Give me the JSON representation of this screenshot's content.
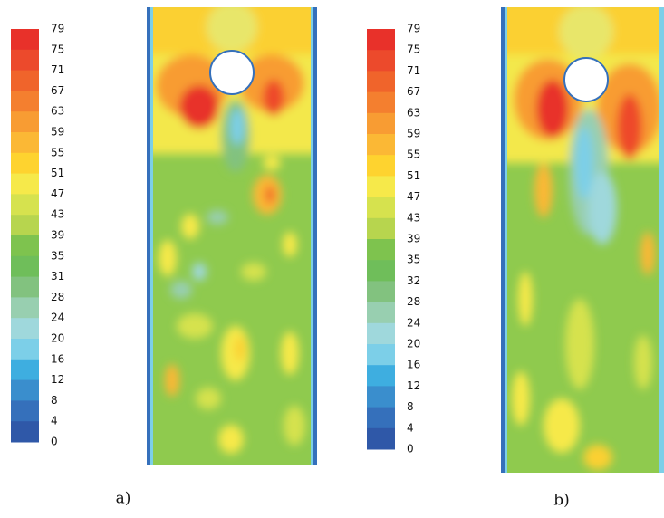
{
  "panels": [
    {
      "colorbar": {
        "labels": [
          79,
          75,
          71,
          67,
          63,
          59,
          55,
          51,
          47,
          43,
          39,
          35,
          31,
          28,
          24,
          20,
          16,
          12,
          8,
          4,
          0
        ]
      },
      "caption": "a)"
    },
    {
      "colorbar": {
        "labels": [
          79,
          75,
          71,
          67,
          63,
          59,
          55,
          51,
          47,
          43,
          39,
          35,
          32,
          28,
          24,
          20,
          16,
          12,
          8,
          4,
          0
        ]
      },
      "caption": "b)"
    }
  ]
}
